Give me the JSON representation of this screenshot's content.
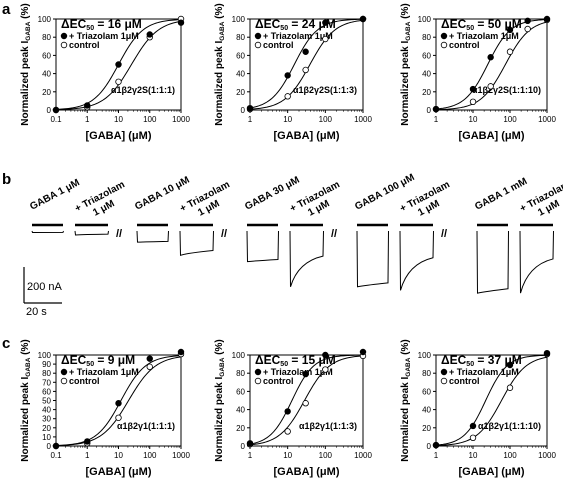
{
  "panel_labels": {
    "a": "a",
    "b": "b",
    "c": "c"
  },
  "chart_data": [
    {
      "id": "a1",
      "type": "scatter",
      "title": "ΔEC50 = 16 μM",
      "title_sub": "50",
      "xlabel": "[GABA] (μM)",
      "ylabel": "Normalized peak I",
      "ylabel_sub": "GABA",
      "ylabel_unit": " (%)",
      "x_scale": "log",
      "xlim": [
        0.1,
        1000
      ],
      "ylim": [
        0,
        100
      ],
      "x_ticks": [
        0.1,
        1,
        10,
        100,
        1000
      ],
      "x_tick_labels": [
        "0.1",
        "1",
        "10",
        "100",
        "1000"
      ],
      "y_ticks": [
        0,
        20,
        40,
        60,
        80,
        100
      ],
      "y_tick_labels": [
        "0",
        "20",
        "40",
        "60",
        "80",
        "100"
      ],
      "condition": "α1β2γ2S(1:1:1)",
      "legend_position": "top-left",
      "series": [
        {
          "name": "+ Triazolam 1μM",
          "marker": "filled",
          "x": [
            0.1,
            1,
            10,
            100,
            1000
          ],
          "y": [
            0,
            5,
            50,
            83,
            96
          ],
          "fit": {
            "ec50": 10,
            "hill": 1.1
          }
        },
        {
          "name": "control",
          "marker": "open",
          "x": [
            0.1,
            1,
            10,
            100,
            1000
          ],
          "y": [
            0,
            3,
            31,
            80,
            100
          ],
          "fit": {
            "ec50": 26,
            "hill": 1.0
          }
        }
      ]
    },
    {
      "id": "a2",
      "type": "scatter",
      "title": "ΔEC50 = 24 μM",
      "title_sub": "50",
      "xlabel": "[GABA] (μM)",
      "ylabel": "Normalized peak I",
      "ylabel_sub": "GABA",
      "ylabel_unit": " (%)",
      "x_scale": "log",
      "xlim": [
        1,
        1000
      ],
      "ylim": [
        0,
        100
      ],
      "x_ticks": [
        1,
        10,
        100,
        1000
      ],
      "x_tick_labels": [
        "1",
        "10",
        "100",
        "1000"
      ],
      "y_ticks": [
        0,
        20,
        40,
        60,
        80,
        100
      ],
      "y_tick_labels": [
        "0",
        "20",
        "40",
        "60",
        "80",
        "100"
      ],
      "condition": "α1β2γ2S(1:1:3)",
      "legend_position": "top-left",
      "series": [
        {
          "name": "+ Triazolam 1μM",
          "marker": "filled",
          "x": [
            1,
            10,
            30,
            100,
            1000
          ],
          "y": [
            2,
            38,
            64,
            96,
            100
          ],
          "fit": {
            "ec50": 15,
            "hill": 1.4
          }
        },
        {
          "name": "control",
          "marker": "open",
          "x": [
            1,
            10,
            30,
            100,
            1000
          ],
          "y": [
            1,
            15,
            44,
            78,
            100
          ],
          "fit": {
            "ec50": 39,
            "hill": 1.3
          }
        }
      ]
    },
    {
      "id": "a3",
      "type": "scatter",
      "title": "ΔEC50 = 50 μM",
      "title_sub": "50",
      "xlabel": "[GABA] (μM)",
      "ylabel": "Normalized peak I",
      "ylabel_sub": "GABA",
      "ylabel_unit": " (%)",
      "x_scale": "log",
      "xlim": [
        1,
        1000
      ],
      "ylim": [
        0,
        100
      ],
      "x_ticks": [
        1,
        10,
        100,
        1000
      ],
      "x_tick_labels": [
        "1",
        "10",
        "100",
        "1000"
      ],
      "y_ticks": [
        0,
        20,
        40,
        60,
        80,
        100
      ],
      "y_tick_labels": [
        "0",
        "20",
        "40",
        "60",
        "80",
        "100"
      ],
      "condition": "α1β2γ2S(1:1:10)",
      "legend_position": "top-left",
      "series": [
        {
          "name": "+ Triazolam 1μM",
          "marker": "filled",
          "x": [
            1,
            10,
            30,
            100,
            300,
            1000
          ],
          "y": [
            1,
            23,
            58,
            88,
            98,
            100
          ],
          "fit": {
            "ec50": 25,
            "hill": 1.4
          }
        },
        {
          "name": "control",
          "marker": "open",
          "x": [
            1,
            10,
            30,
            100,
            300,
            1000
          ],
          "y": [
            1,
            9,
            26,
            64,
            89,
            99
          ],
          "fit": {
            "ec50": 75,
            "hill": 1.3
          }
        }
      ]
    },
    {
      "id": "c1",
      "type": "scatter",
      "title": "ΔEC50 = 9 μM",
      "title_sub": "50",
      "xlabel": "[GABA] (μM)",
      "ylabel": "Normalized peak I",
      "ylabel_sub": "GABA",
      "ylabel_unit": " (%)",
      "x_scale": "log",
      "xlim": [
        0.1,
        1000
      ],
      "ylim": [
        0,
        100
      ],
      "x_ticks": [
        0.1,
        1,
        10,
        100,
        1000
      ],
      "x_tick_labels": [
        "0.1",
        "1",
        "10",
        "100",
        "1000"
      ],
      "y_ticks": [
        0,
        10,
        20,
        30,
        40,
        50,
        60,
        70,
        80,
        90,
        100
      ],
      "y_tick_labels": [
        "0",
        "10",
        "20",
        "30",
        "40",
        "50",
        "60",
        "70",
        "80",
        "90",
        "100"
      ],
      "condition": "α1β2γ1(1:1:1)",
      "legend_position": "top-left",
      "series": [
        {
          "name": "+ Triazolam 1μM",
          "marker": "filled",
          "x": [
            0.1,
            1,
            10,
            100,
            1000
          ],
          "y": [
            0,
            5,
            47,
            96,
            104
          ],
          "fit": {
            "ec50": 12,
            "hill": 1.1
          }
        },
        {
          "name": "control",
          "marker": "open",
          "x": [
            0.1,
            1,
            10,
            100,
            1000
          ],
          "y": [
            0,
            3,
            31,
            87,
            101
          ],
          "fit": {
            "ec50": 21,
            "hill": 1.0
          }
        }
      ]
    },
    {
      "id": "c2",
      "type": "scatter",
      "title": "ΔEC50 = 15 μM",
      "title_sub": "50",
      "xlabel": "[GABA] (μM)",
      "ylabel": "Normalized peak I",
      "ylabel_sub": "GABA",
      "ylabel_unit": " (%)",
      "x_scale": "log",
      "xlim": [
        1,
        1000
      ],
      "ylim": [
        0,
        100
      ],
      "x_ticks": [
        1,
        10,
        100,
        1000
      ],
      "x_tick_labels": [
        "1",
        "10",
        "100",
        "1000"
      ],
      "y_ticks": [
        0,
        20,
        40,
        60,
        80,
        100
      ],
      "y_tick_labels": [
        "0",
        "20",
        "40",
        "60",
        "80",
        "100"
      ],
      "condition": "α1β2γ1(1:1:3)",
      "legend_position": "top-left",
      "series": [
        {
          "name": "+ Triazolam 1μM",
          "marker": "filled",
          "x": [
            1,
            10,
            30,
            100,
            1000
          ],
          "y": [
            3,
            38,
            79,
            100,
            104
          ],
          "fit": {
            "ec50": 13,
            "hill": 1.5
          }
        },
        {
          "name": "control",
          "marker": "open",
          "x": [
            1,
            10,
            30,
            100,
            1000
          ],
          "y": [
            2,
            16,
            47,
            84,
            99
          ],
          "fit": {
            "ec50": 28,
            "hill": 1.3
          }
        }
      ]
    },
    {
      "id": "c3",
      "type": "scatter",
      "title": "ΔEC50 = 37 μM",
      "title_sub": "50",
      "xlabel": "[GABA] (μM)",
      "ylabel": "Normalized peak I",
      "ylabel_sub": "GABA",
      "ylabel_unit": " (%)",
      "x_scale": "log",
      "xlim": [
        1,
        1000
      ],
      "ylim": [
        0,
        100
      ],
      "x_ticks": [
        1,
        10,
        100,
        1000
      ],
      "x_tick_labels": [
        "1",
        "10",
        "100",
        "1000"
      ],
      "y_ticks": [
        0,
        20,
        40,
        60,
        80,
        100
      ],
      "y_tick_labels": [
        "0",
        "20",
        "40",
        "60",
        "80",
        "100"
      ],
      "condition": "α1β2γ1(1:1:10)",
      "legend_position": "top-left",
      "series": [
        {
          "name": "+ Triazolam 1μM",
          "marker": "filled",
          "x": [
            1,
            10,
            100,
            1000
          ],
          "y": [
            1,
            22,
            89,
            102
          ],
          "fit": {
            "ec50": 22,
            "hill": 1.5
          }
        },
        {
          "name": "control",
          "marker": "open",
          "x": [
            1,
            10,
            100,
            1000
          ],
          "y": [
            1,
            9,
            64,
            101
          ],
          "fit": {
            "ec50": 59,
            "hill": 1.3
          }
        }
      ]
    }
  ],
  "traces": {
    "groups": [
      {
        "gaba_label": "GABA 1 μM",
        "triazolam_label": "+ Triazolam",
        "triazolam_dose": "1 μM",
        "control_amp_nA": 8,
        "triazolam_amp_nA": 22,
        "break": "//"
      },
      {
        "gaba_label": "GABA 10 μM",
        "triazolam_label": "+ Triazolam",
        "triazolam_dose": "1 μM",
        "control_amp_nA": 62,
        "triazolam_amp_nA": 135,
        "break": "//"
      },
      {
        "gaba_label": "GABA 30 μM",
        "triazolam_label": "+ Triazolam",
        "triazolam_dose": "1 μM",
        "control_amp_nA": 170,
        "triazolam_amp_nA": 310,
        "break": "//"
      },
      {
        "gaba_label": "GABA 100 μM",
        "triazolam_label": "+ Triazolam",
        "triazolam_dose": "1 μM",
        "control_amp_nA": 310,
        "triazolam_amp_nA": 330,
        "break": "//"
      },
      {
        "gaba_label": "GABA 1 mM",
        "triazolam_label": "+ Triazolam",
        "triazolam_dose": "1 μM",
        "control_amp_nA": 345,
        "triazolam_amp_nA": 345,
        "break": ""
      }
    ],
    "scale_current": "200 nA",
    "scale_time": "20 s"
  }
}
